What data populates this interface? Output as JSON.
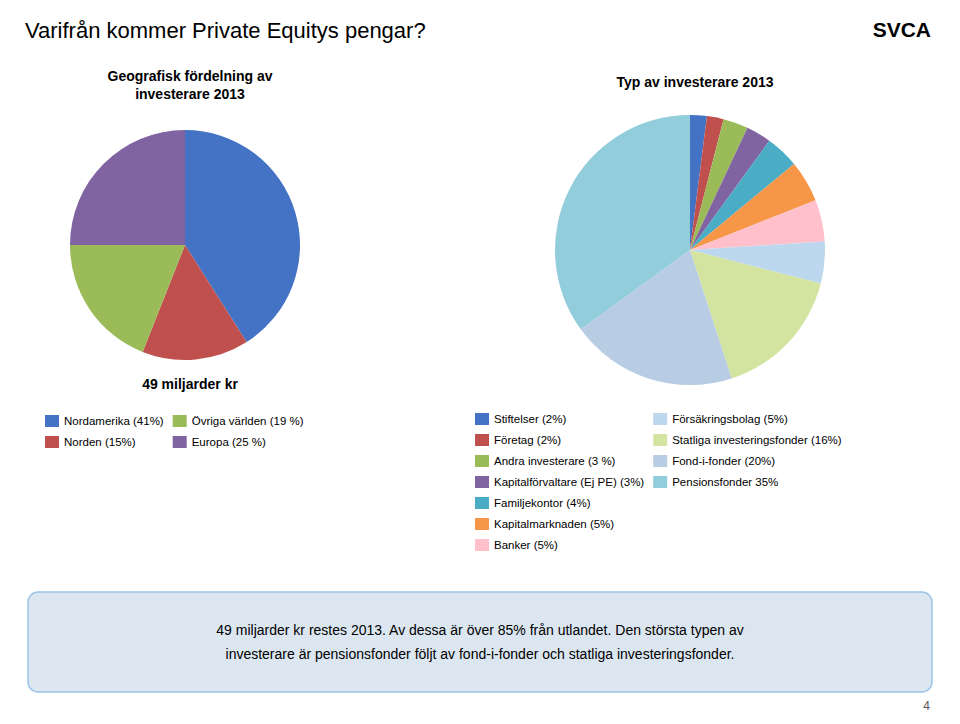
{
  "title": "Varifrån kommer Private Equitys pengar?",
  "annotations": [
    "SVCA",
    "49 miljarder kr restes 2013. Av dessa är över 85% från utlandet. Den största typen av\ninvesterare är pensionsfonder följt av fond-i-fonder och statliga investeringsfonder.",
    "4"
  ],
  "chart_data": [
    {
      "type": "pie",
      "title": "Geografisk fördelning av\ninvesterare 2013",
      "categories": [
        "Nordamerika (41%)",
        "Norden (15%)",
        "Övriga världen (19 %)",
        "Europa (25 %)"
      ],
      "values": [
        41,
        15,
        19,
        25
      ],
      "colors": [
        "#4472C4",
        "#C0504D",
        "#9BBB59",
        "#8064A2"
      ],
      "annotations": [
        "49 miljarder kr"
      ],
      "legend": "bottom"
    },
    {
      "type": "pie",
      "title": "Typ av investerare 2013",
      "categories": [
        "Stiftelser (2%)",
        "Företag (2%)",
        "Andra investerare (3 %)",
        "Kapitalförvaltare (Ej PE) (3%)",
        "Familjekontor (4%)",
        "Kapitalmarknaden (5%)",
        "Banker (5%)",
        "Försäkringsbolag (5%)",
        "Statliga investeringsfonder (16%)",
        "Fond-i-fonder (20%)",
        "Pensionsfonder 35%"
      ],
      "values": [
        2,
        2,
        3,
        3,
        4,
        5,
        5,
        5,
        16,
        20,
        35
      ],
      "colors": [
        "#4472C4",
        "#C0504D",
        "#9BBB59",
        "#8064A2",
        "#4BACC6",
        "#F79646",
        "#FFC0CB",
        "#BDD7EE",
        "#D3E4A0",
        "#B8CCE4",
        "#92CDDC"
      ],
      "legend": "bottom"
    }
  ]
}
